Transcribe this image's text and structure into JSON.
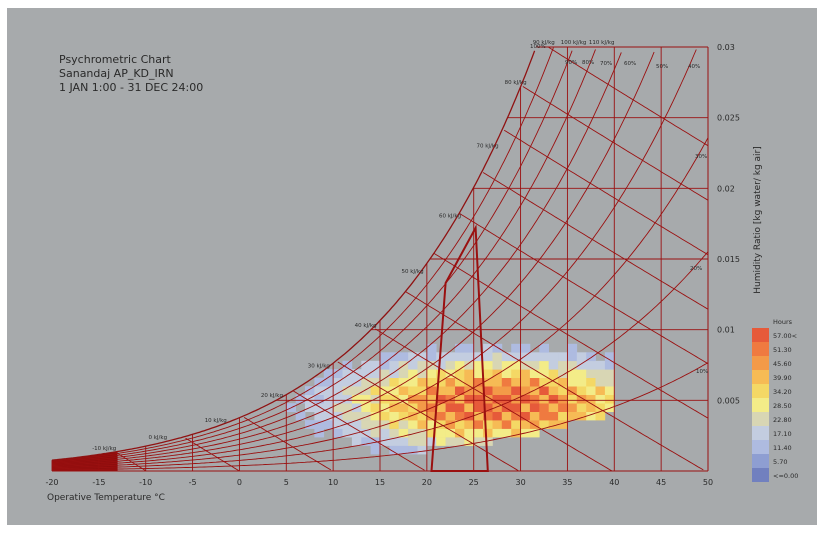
{
  "title_lines": [
    "Psychrometric Chart",
    "Sanandaj AP_KD_IRN",
    "1 JAN 1:00 - 31 DEC 24:00"
  ],
  "chart_data": {
    "type": "heatmap",
    "chart_kind": "psychrometric",
    "xlabel": "Operative Temperature °C",
    "ylabel": "Humidity Ratio [kg water/ kg air]",
    "xlim": [
      -20,
      50
    ],
    "ylim": [
      0,
      0.03
    ],
    "x_ticks": [
      "-20",
      "-15",
      "-10",
      "-5",
      "0",
      "5",
      "10",
      "15",
      "20",
      "25",
      "30",
      "35",
      "40",
      "45",
      "50"
    ],
    "y_ticks": [
      "0.005",
      "0.01",
      "0.015",
      "0.02",
      "0.025",
      "0.03"
    ],
    "rh_labels": [
      "10%",
      "20%",
      "30%",
      "40%",
      "50%",
      "60%",
      "70%",
      "80%",
      "90%",
      "100%"
    ],
    "enthalpy_labels": [
      "-10 kJ/kg",
      "0 kJ/kg",
      "10 kJ/kg",
      "20 kJ/kg",
      "30 kJ/kg",
      "40 kJ/kg",
      "50 kJ/kg",
      "60 kJ/kg",
      "70 kJ/kg",
      "80 kJ/kg",
      "90 kJ/kg",
      "100 kJ/kg",
      "110 kJ/kg"
    ],
    "comfort_polygon": {
      "color": "#9a1010",
      "points": [
        [
          20.5,
          0.0
        ],
        [
          26.5,
          0.0
        ],
        [
          25.2,
          0.0172
        ],
        [
          22.0,
          0.0133
        ]
      ]
    },
    "colorbar": {
      "title": "Hours",
      "labels": [
        "57.00<",
        "51.30",
        "45.60",
        "39.90",
        "34.20",
        "28.50",
        "22.80",
        "17.10",
        "11.40",
        "5.70",
        "<=0.00"
      ],
      "colors": [
        "#e65a3a",
        "#ef7a40",
        "#f39a48",
        "#f6bb55",
        "#f4d865",
        "#f3ec88",
        "#d8d6b4",
        "#c3cde0",
        "#aebbe0",
        "#8e9ed2",
        "#7180bf"
      ]
    },
    "colors": {
      "panel": "#a7aaac",
      "grid": "#9a1010",
      "rh_line": "#8f1212",
      "text": "#2a2a2a"
    }
  }
}
